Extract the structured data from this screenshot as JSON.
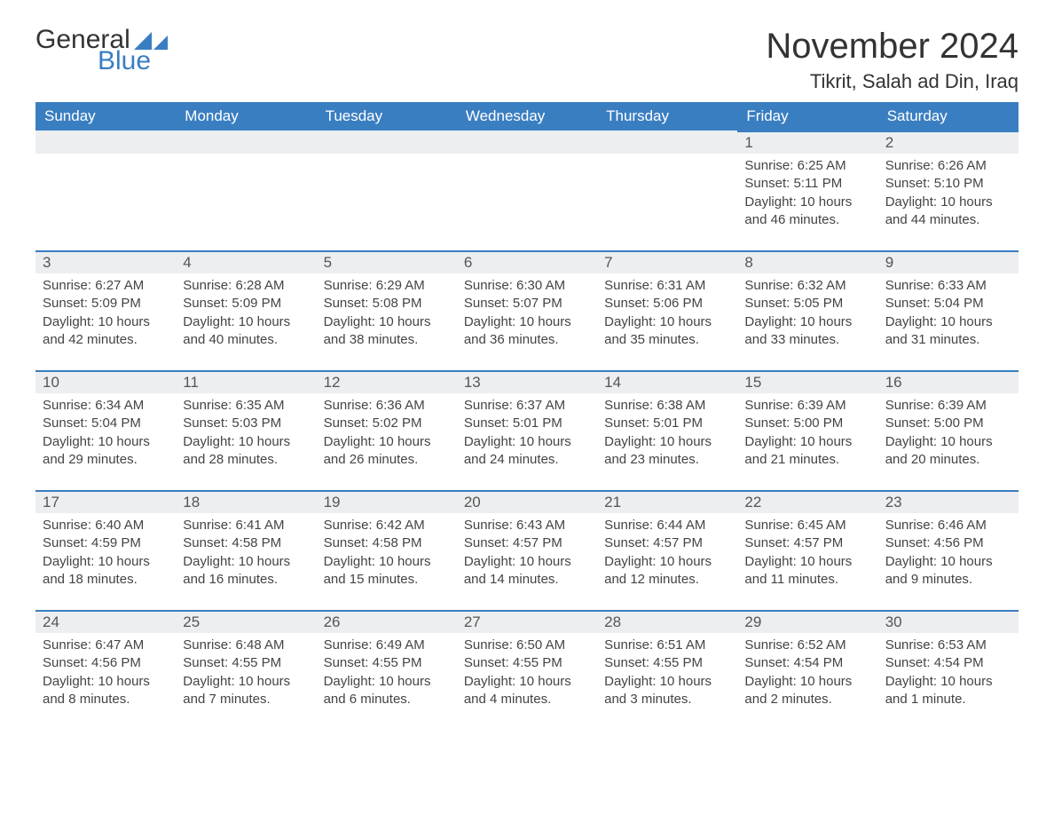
{
  "brand": {
    "word1": "General",
    "word2": "Blue",
    "accent_color": "#3a7ec2"
  },
  "title": "November 2024",
  "location": "Tikrit, Salah ad Din, Iraq",
  "colors": {
    "header_bg": "#3a7ec2",
    "header_text": "#ffffff",
    "day_header_bg": "#eceeef",
    "day_header_border": "#3a7ec2",
    "body_text": "#444444",
    "page_bg": "#ffffff"
  },
  "typography": {
    "title_fontsize": 40,
    "location_fontsize": 22,
    "header_fontsize": 17,
    "cell_fontsize": 15
  },
  "weekdays": [
    "Sunday",
    "Monday",
    "Tuesday",
    "Wednesday",
    "Thursday",
    "Friday",
    "Saturday"
  ],
  "weeks": [
    [
      null,
      null,
      null,
      null,
      null,
      {
        "day": "1",
        "sunrise": "Sunrise: 6:25 AM",
        "sunset": "Sunset: 5:11 PM",
        "daylight": "Daylight: 10 hours and 46 minutes."
      },
      {
        "day": "2",
        "sunrise": "Sunrise: 6:26 AM",
        "sunset": "Sunset: 5:10 PM",
        "daylight": "Daylight: 10 hours and 44 minutes."
      }
    ],
    [
      {
        "day": "3",
        "sunrise": "Sunrise: 6:27 AM",
        "sunset": "Sunset: 5:09 PM",
        "daylight": "Daylight: 10 hours and 42 minutes."
      },
      {
        "day": "4",
        "sunrise": "Sunrise: 6:28 AM",
        "sunset": "Sunset: 5:09 PM",
        "daylight": "Daylight: 10 hours and 40 minutes."
      },
      {
        "day": "5",
        "sunrise": "Sunrise: 6:29 AM",
        "sunset": "Sunset: 5:08 PM",
        "daylight": "Daylight: 10 hours and 38 minutes."
      },
      {
        "day": "6",
        "sunrise": "Sunrise: 6:30 AM",
        "sunset": "Sunset: 5:07 PM",
        "daylight": "Daylight: 10 hours and 36 minutes."
      },
      {
        "day": "7",
        "sunrise": "Sunrise: 6:31 AM",
        "sunset": "Sunset: 5:06 PM",
        "daylight": "Daylight: 10 hours and 35 minutes."
      },
      {
        "day": "8",
        "sunrise": "Sunrise: 6:32 AM",
        "sunset": "Sunset: 5:05 PM",
        "daylight": "Daylight: 10 hours and 33 minutes."
      },
      {
        "day": "9",
        "sunrise": "Sunrise: 6:33 AM",
        "sunset": "Sunset: 5:04 PM",
        "daylight": "Daylight: 10 hours and 31 minutes."
      }
    ],
    [
      {
        "day": "10",
        "sunrise": "Sunrise: 6:34 AM",
        "sunset": "Sunset: 5:04 PM",
        "daylight": "Daylight: 10 hours and 29 minutes."
      },
      {
        "day": "11",
        "sunrise": "Sunrise: 6:35 AM",
        "sunset": "Sunset: 5:03 PM",
        "daylight": "Daylight: 10 hours and 28 minutes."
      },
      {
        "day": "12",
        "sunrise": "Sunrise: 6:36 AM",
        "sunset": "Sunset: 5:02 PM",
        "daylight": "Daylight: 10 hours and 26 minutes."
      },
      {
        "day": "13",
        "sunrise": "Sunrise: 6:37 AM",
        "sunset": "Sunset: 5:01 PM",
        "daylight": "Daylight: 10 hours and 24 minutes."
      },
      {
        "day": "14",
        "sunrise": "Sunrise: 6:38 AM",
        "sunset": "Sunset: 5:01 PM",
        "daylight": "Daylight: 10 hours and 23 minutes."
      },
      {
        "day": "15",
        "sunrise": "Sunrise: 6:39 AM",
        "sunset": "Sunset: 5:00 PM",
        "daylight": "Daylight: 10 hours and 21 minutes."
      },
      {
        "day": "16",
        "sunrise": "Sunrise: 6:39 AM",
        "sunset": "Sunset: 5:00 PM",
        "daylight": "Daylight: 10 hours and 20 minutes."
      }
    ],
    [
      {
        "day": "17",
        "sunrise": "Sunrise: 6:40 AM",
        "sunset": "Sunset: 4:59 PM",
        "daylight": "Daylight: 10 hours and 18 minutes."
      },
      {
        "day": "18",
        "sunrise": "Sunrise: 6:41 AM",
        "sunset": "Sunset: 4:58 PM",
        "daylight": "Daylight: 10 hours and 16 minutes."
      },
      {
        "day": "19",
        "sunrise": "Sunrise: 6:42 AM",
        "sunset": "Sunset: 4:58 PM",
        "daylight": "Daylight: 10 hours and 15 minutes."
      },
      {
        "day": "20",
        "sunrise": "Sunrise: 6:43 AM",
        "sunset": "Sunset: 4:57 PM",
        "daylight": "Daylight: 10 hours and 14 minutes."
      },
      {
        "day": "21",
        "sunrise": "Sunrise: 6:44 AM",
        "sunset": "Sunset: 4:57 PM",
        "daylight": "Daylight: 10 hours and 12 minutes."
      },
      {
        "day": "22",
        "sunrise": "Sunrise: 6:45 AM",
        "sunset": "Sunset: 4:57 PM",
        "daylight": "Daylight: 10 hours and 11 minutes."
      },
      {
        "day": "23",
        "sunrise": "Sunrise: 6:46 AM",
        "sunset": "Sunset: 4:56 PM",
        "daylight": "Daylight: 10 hours and 9 minutes."
      }
    ],
    [
      {
        "day": "24",
        "sunrise": "Sunrise: 6:47 AM",
        "sunset": "Sunset: 4:56 PM",
        "daylight": "Daylight: 10 hours and 8 minutes."
      },
      {
        "day": "25",
        "sunrise": "Sunrise: 6:48 AM",
        "sunset": "Sunset: 4:55 PM",
        "daylight": "Daylight: 10 hours and 7 minutes."
      },
      {
        "day": "26",
        "sunrise": "Sunrise: 6:49 AM",
        "sunset": "Sunset: 4:55 PM",
        "daylight": "Daylight: 10 hours and 6 minutes."
      },
      {
        "day": "27",
        "sunrise": "Sunrise: 6:50 AM",
        "sunset": "Sunset: 4:55 PM",
        "daylight": "Daylight: 10 hours and 4 minutes."
      },
      {
        "day": "28",
        "sunrise": "Sunrise: 6:51 AM",
        "sunset": "Sunset: 4:55 PM",
        "daylight": "Daylight: 10 hours and 3 minutes."
      },
      {
        "day": "29",
        "sunrise": "Sunrise: 6:52 AM",
        "sunset": "Sunset: 4:54 PM",
        "daylight": "Daylight: 10 hours and 2 minutes."
      },
      {
        "day": "30",
        "sunrise": "Sunrise: 6:53 AM",
        "sunset": "Sunset: 4:54 PM",
        "daylight": "Daylight: 10 hours and 1 minute."
      }
    ]
  ]
}
